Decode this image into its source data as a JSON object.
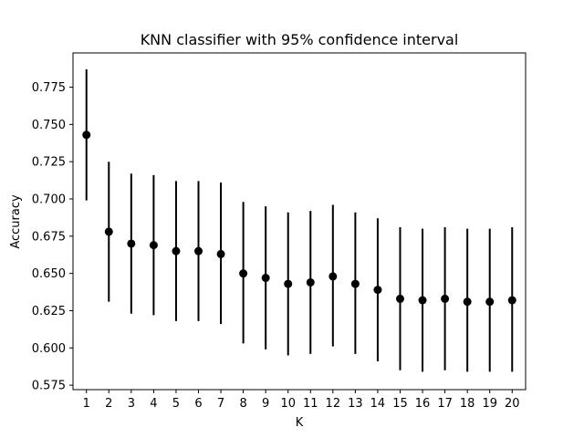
{
  "chart_data": {
    "type": "scatter",
    "title": "KNN classifier with 95% confidence interval",
    "xlabel": "K",
    "ylabel": "Accuracy",
    "x": [
      1,
      2,
      3,
      4,
      5,
      6,
      7,
      8,
      9,
      10,
      11,
      12,
      13,
      14,
      15,
      16,
      17,
      18,
      19,
      20
    ],
    "x_ticks": [
      "1",
      "2",
      "3",
      "4",
      "5",
      "6",
      "7",
      "8",
      "9",
      "10",
      "11",
      "12",
      "13",
      "14",
      "15",
      "16",
      "17",
      "18",
      "19",
      "20"
    ],
    "y_ticks": [
      "0.575",
      "0.600",
      "0.625",
      "0.650",
      "0.675",
      "0.700",
      "0.725",
      "0.750",
      "0.775"
    ],
    "xlim": [
      0.4,
      20.6
    ],
    "ylim": [
      0.572,
      0.798
    ],
    "grid": false,
    "marker_color": "#000000",
    "errorbar_color": "#000000",
    "series": [
      {
        "values": [
          0.743,
          0.678,
          0.67,
          0.669,
          0.665,
          0.665,
          0.663,
          0.65,
          0.647,
          0.643,
          0.644,
          0.648,
          0.643,
          0.639,
          0.633,
          0.632,
          0.633,
          0.631,
          0.631,
          0.632
        ],
        "lower": [
          0.699,
          0.631,
          0.623,
          0.622,
          0.618,
          0.618,
          0.616,
          0.603,
          0.599,
          0.595,
          0.596,
          0.601,
          0.596,
          0.591,
          0.585,
          0.584,
          0.585,
          0.584,
          0.584,
          0.584
        ],
        "upper": [
          0.787,
          0.725,
          0.717,
          0.716,
          0.712,
          0.712,
          0.711,
          0.698,
          0.695,
          0.691,
          0.692,
          0.696,
          0.691,
          0.687,
          0.681,
          0.68,
          0.681,
          0.68,
          0.68,
          0.681
        ]
      }
    ]
  }
}
